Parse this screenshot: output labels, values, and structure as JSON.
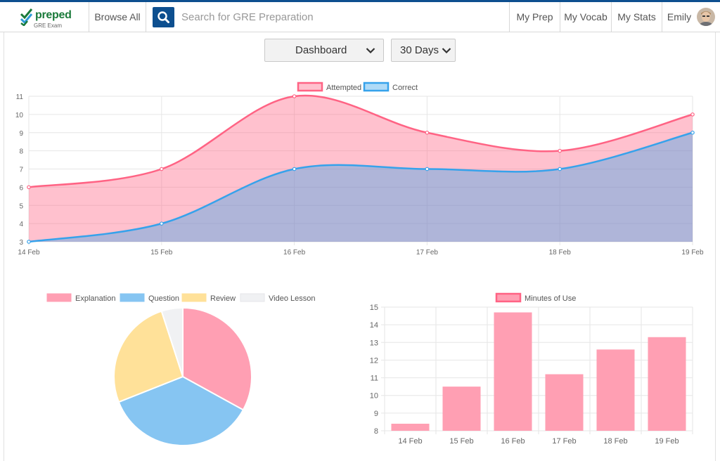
{
  "app": {
    "logo_text": "preped",
    "logo_sub": "GRE Exam",
    "brand_color": "#0d4f8f"
  },
  "nav": {
    "browse_all": "Browse All",
    "search_placeholder": "Search for GRE Preparation",
    "links": [
      "My Prep",
      "My Vocab",
      "My Stats"
    ],
    "user_name": "Emily"
  },
  "controls": {
    "view_select": "Dashboard",
    "range_select": "30 Days"
  },
  "chart_data": [
    {
      "type": "area",
      "categories": [
        "14 Feb",
        "15 Feb",
        "16 Feb",
        "17 Feb",
        "18 Feb",
        "19 Feb"
      ],
      "series": [
        {
          "name": "Attempted",
          "values": [
            6,
            7,
            11,
            9,
            8,
            10
          ],
          "color": "#ff6384",
          "fill": "rgba(255,99,132,0.4)"
        },
        {
          "name": "Correct",
          "values": [
            3,
            4,
            7,
            7,
            7,
            9
          ],
          "color": "#36a2eb",
          "fill": "rgba(54,162,235,0.4)"
        }
      ],
      "ylim": [
        3,
        11
      ],
      "yticks": [
        3,
        4,
        5,
        6,
        7,
        8,
        9,
        10,
        11
      ],
      "legend": "top",
      "grid": true
    },
    {
      "type": "pie",
      "labels": [
        "Explanation",
        "Question",
        "Review",
        "Video Lesson"
      ],
      "values": [
        33,
        36,
        26,
        5
      ],
      "colors": [
        "#ff9fb3",
        "#86c5f2",
        "#ffe199",
        "#f0f1f3"
      ],
      "legend": "top"
    },
    {
      "type": "bar",
      "categories": [
        "14 Feb",
        "15 Feb",
        "16 Feb",
        "17 Feb",
        "18 Feb",
        "19 Feb"
      ],
      "series": [
        {
          "name": "Minutes of Use",
          "values": [
            8.4,
            10.5,
            14.7,
            11.2,
            12.6,
            13.3
          ],
          "color": "#ff9fb3"
        }
      ],
      "ylim": [
        8,
        15
      ],
      "yticks": [
        8,
        9,
        10,
        11,
        12,
        13,
        14,
        15
      ],
      "legend": "top",
      "grid": true
    }
  ]
}
